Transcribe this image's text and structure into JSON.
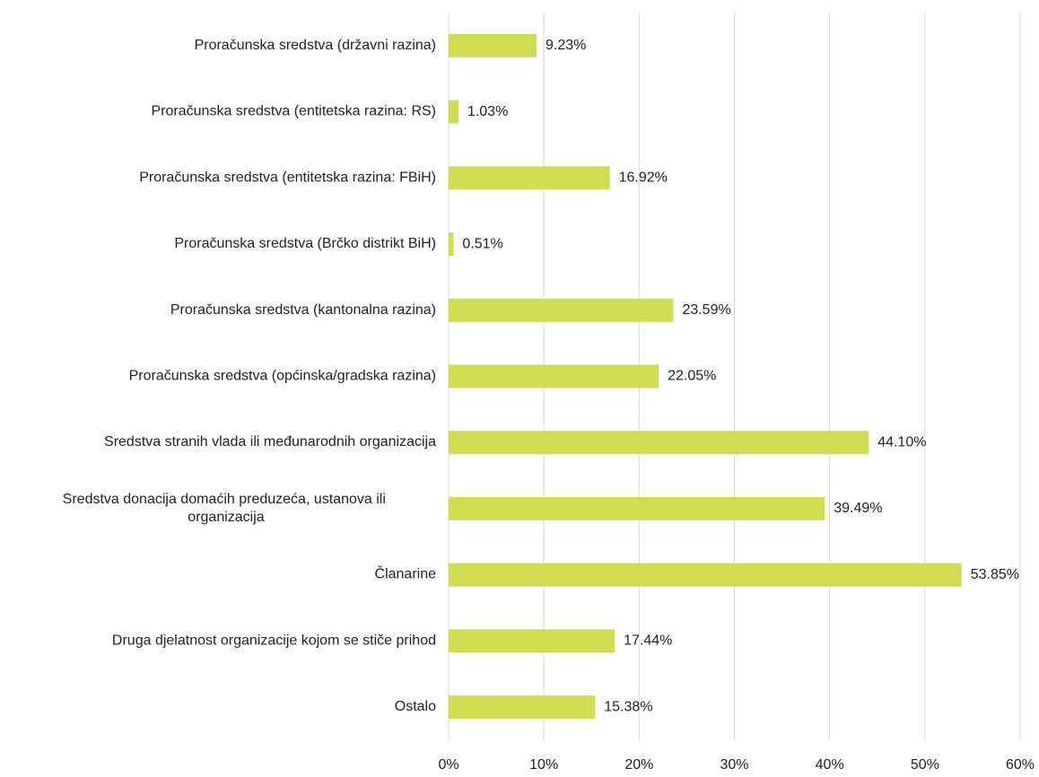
{
  "chart_data": {
    "type": "barh",
    "categories": [
      "Proračunska sredstva (državni razina)",
      "Proračunska sredstva (entitetska razina: RS)",
      "Proračunska sredstva (entitetska razina: FBiH)",
      "Proračunska sredstva (Brčko distrikt BiH)",
      "Proračunska sredstva (kantonalna razina)",
      "Proračunska sredstva (općinska/gradska razina)",
      "Sredstva stranih vlada ili međunarodnih organizacija",
      "Sredstva donacija domaćih preduzeća, ustanova ili organizacija",
      "Članarine",
      "Druga djelatnost organizacije kojom se stiče prihod",
      "Ostalo"
    ],
    "values": [
      9.23,
      1.03,
      16.92,
      0.51,
      23.59,
      22.05,
      44.1,
      39.49,
      53.85,
      17.44,
      15.38
    ],
    "value_labels": [
      "9.23%",
      "1.03%",
      "16.92%",
      "0.51%",
      "23.59%",
      "22.05%",
      "44.10%",
      "39.49%",
      "53.85%",
      "17.44%",
      "15.38%"
    ],
    "color": "#cfdd50",
    "xlim": [
      0,
      60
    ],
    "xticks": [
      {
        "value": 0,
        "label": "0%"
      },
      {
        "value": 10,
        "label": "10%"
      },
      {
        "value": 20,
        "label": "20%"
      },
      {
        "value": 30,
        "label": "30%"
      },
      {
        "value": 40,
        "label": "40%"
      },
      {
        "value": 50,
        "label": "50%"
      },
      {
        "value": 60,
        "label": "60%"
      }
    ],
    "grid": true
  }
}
